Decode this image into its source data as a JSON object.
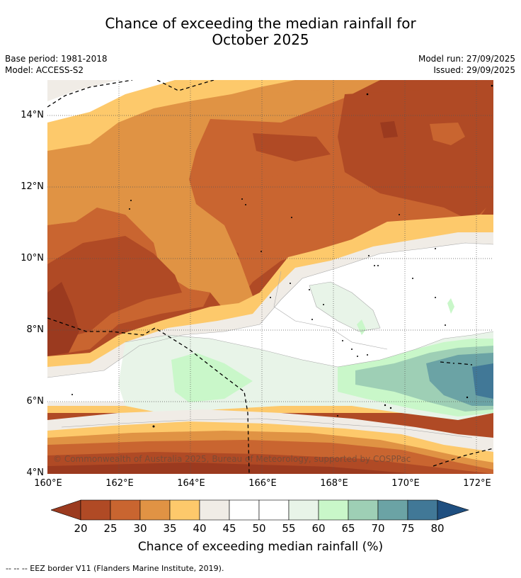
{
  "title_line1": "Chance of exceeding the median rainfall for",
  "title_line2": "October 2025",
  "base_period": "Base period: 1981-2018",
  "model": "Model: ACCESS-S2",
  "model_run": "Model run: 27/09/2025",
  "issued": "Issued: 29/09/2025",
  "copyright": "© Commonwealth of Australia 2025, Bureau of Meteorology, supported by COSPPac",
  "lat_labels": [
    "14°N",
    "12°N",
    "10°N",
    "8°N",
    "6°N",
    "4°N"
  ],
  "lon_labels": [
    "160°E",
    "162°E",
    "164°E",
    "166°E",
    "168°E",
    "170°E",
    "172°E"
  ],
  "colorbar": {
    "ticks": [
      "20",
      "25",
      "30",
      "35",
      "40",
      "45",
      "50",
      "55",
      "60",
      "65",
      "70",
      "75",
      "80"
    ],
    "label": "Chance of exceeding median rainfall (%)",
    "colors": {
      "below20": "#9b3a1f",
      "c20_25": "#b04a25",
      "c25_30": "#c96530",
      "c30_35": "#e09344",
      "c35_40": "#fdc96b",
      "c40_45": "#f0ece6",
      "c45_50": "#ffffff",
      "c50_55": "#ffffff",
      "c55_60": "#e8f4e8",
      "c60_65": "#c9f7c9",
      "c65_70": "#9ecfb5",
      "c70_75": "#6ba3a5",
      "c75_80": "#417897",
      "above80": "#1f4f80"
    }
  },
  "footnote": "--  --  -- EEZ border V11 (Flanders Marine Institute, 2019)."
}
